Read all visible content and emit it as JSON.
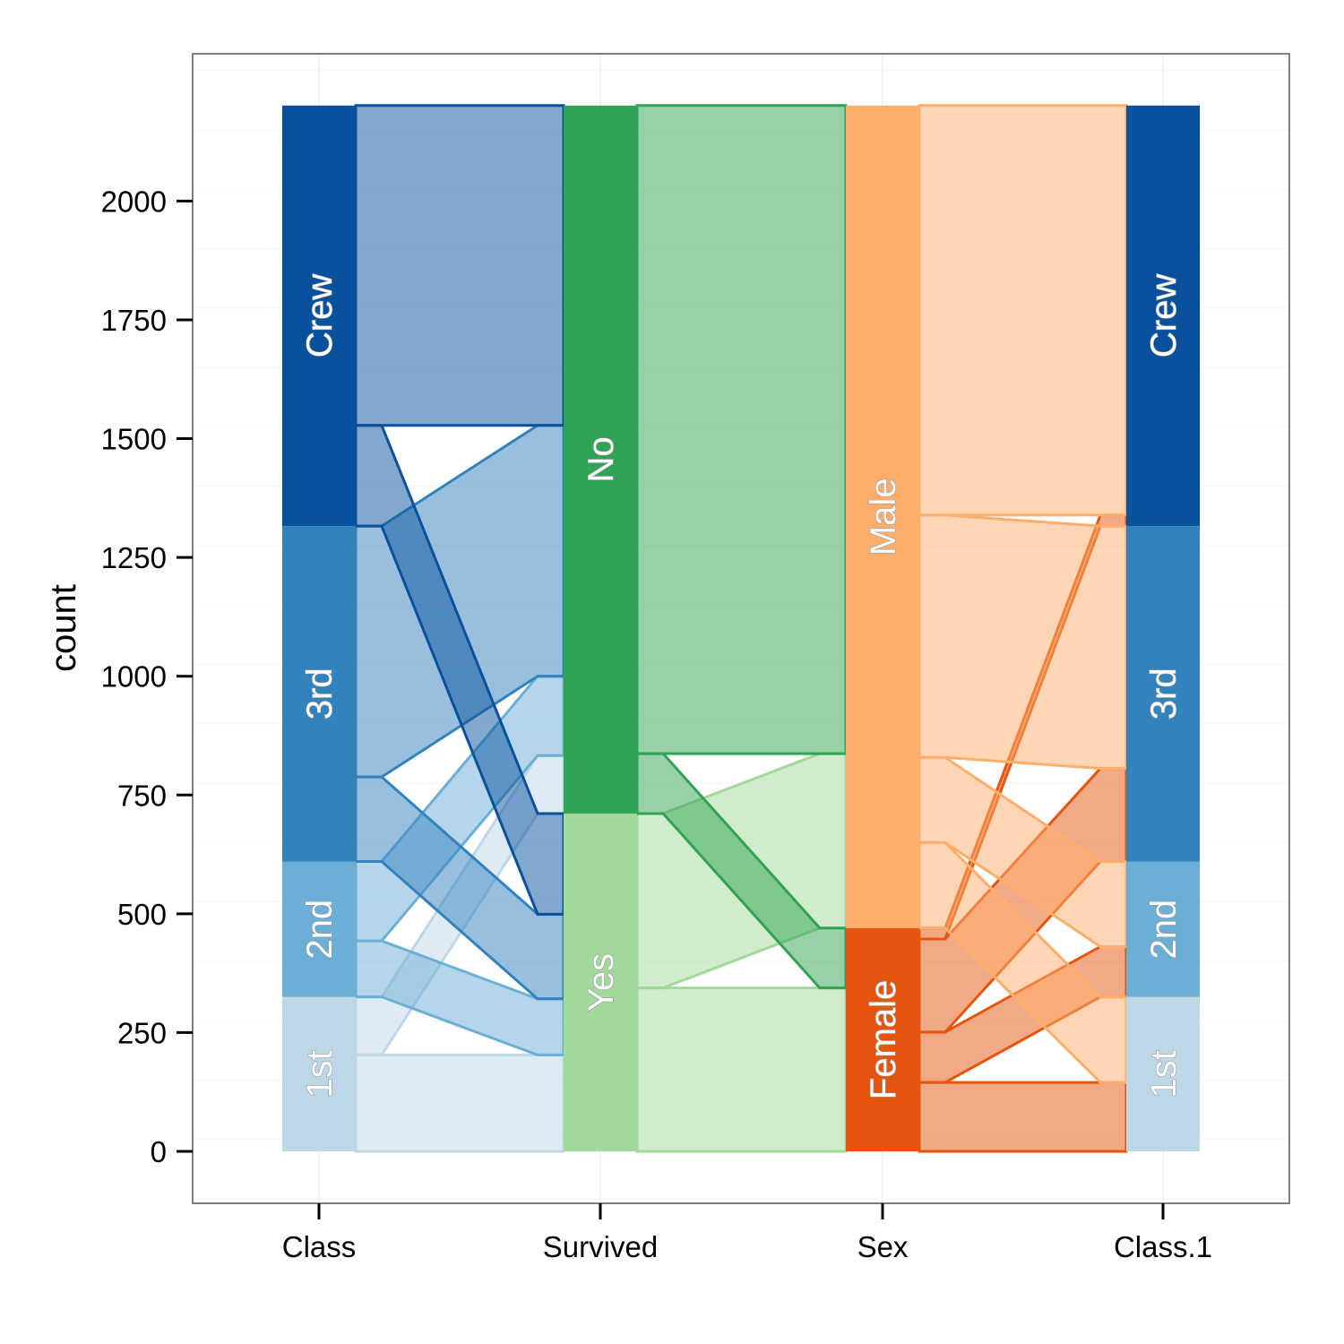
{
  "chart_data": {
    "type": "parallel-sets",
    "ylabel": "count",
    "ylim": [
      -100,
      2300
    ],
    "yticks": [
      0,
      250,
      500,
      750,
      1000,
      1250,
      1500,
      1750,
      2000
    ],
    "grid": true,
    "legend": "none",
    "axes": [
      "Class",
      "Survived",
      "Sex",
      "Class.1"
    ],
    "levels": {
      "Class": [
        "1st",
        "2nd",
        "3rd",
        "Crew"
      ],
      "Survived": [
        "Yes",
        "No"
      ],
      "Sex": [
        "Female",
        "Male"
      ],
      "Class.1": [
        "1st",
        "2nd",
        "3rd",
        "Crew"
      ]
    },
    "colors": {
      "Class": {
        "1st": "#bdd7e7",
        "2nd": "#6baed6",
        "3rd": "#3182bd",
        "Crew": "#08519c"
      },
      "Survived": {
        "Yes": "#a1d99b",
        "No": "#31a354"
      },
      "Sex": {
        "Female": "#e6550d",
        "Male": "#fdae6b"
      }
    },
    "counts": [
      {
        "class": "1st",
        "sex": "Male",
        "survived": "No",
        "n": 118
      },
      {
        "class": "1st",
        "sex": "Male",
        "survived": "Yes",
        "n": 62
      },
      {
        "class": "1st",
        "sex": "Female",
        "survived": "No",
        "n": 4
      },
      {
        "class": "1st",
        "sex": "Female",
        "survived": "Yes",
        "n": 141
      },
      {
        "class": "2nd",
        "sex": "Male",
        "survived": "No",
        "n": 154
      },
      {
        "class": "2nd",
        "sex": "Male",
        "survived": "Yes",
        "n": 25
      },
      {
        "class": "2nd",
        "sex": "Female",
        "survived": "No",
        "n": 13
      },
      {
        "class": "2nd",
        "sex": "Female",
        "survived": "Yes",
        "n": 93
      },
      {
        "class": "3rd",
        "sex": "Male",
        "survived": "No",
        "n": 422
      },
      {
        "class": "3rd",
        "sex": "Male",
        "survived": "Yes",
        "n": 88
      },
      {
        "class": "3rd",
        "sex": "Female",
        "survived": "No",
        "n": 106
      },
      {
        "class": "3rd",
        "sex": "Female",
        "survived": "Yes",
        "n": 90
      },
      {
        "class": "Crew",
        "sex": "Male",
        "survived": "No",
        "n": 670
      },
      {
        "class": "Crew",
        "sex": "Male",
        "survived": "Yes",
        "n": 192
      },
      {
        "class": "Crew",
        "sex": "Female",
        "survived": "No",
        "n": 3
      },
      {
        "class": "Crew",
        "sex": "Female",
        "survived": "Yes",
        "n": 20
      }
    ]
  }
}
